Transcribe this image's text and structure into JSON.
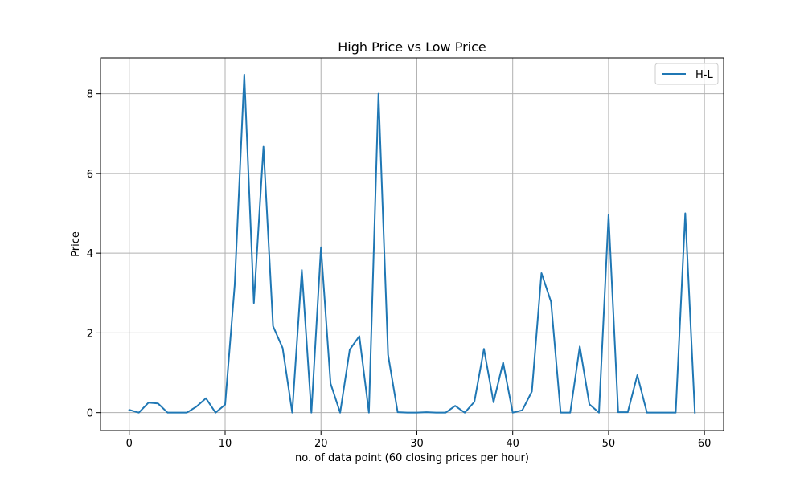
{
  "chart_data": {
    "type": "line",
    "title": "High Price vs Low Price",
    "xlabel": "no. of data point (60 closing prices per hour)",
    "ylabel": "Price",
    "xlim": [
      -3,
      62
    ],
    "ylim": [
      -0.45,
      8.9
    ],
    "x_ticks": [
      0,
      10,
      20,
      30,
      40,
      50,
      60
    ],
    "y_ticks": [
      0,
      2,
      4,
      6,
      8
    ],
    "grid": true,
    "legend_position": "top-right",
    "series": [
      {
        "name": "H-L",
        "color": "#1f77b4",
        "x": [
          0,
          1,
          2,
          3,
          4,
          5,
          6,
          7,
          8,
          9,
          10,
          11,
          12,
          13,
          14,
          15,
          16,
          17,
          18,
          19,
          20,
          21,
          22,
          23,
          24,
          25,
          26,
          27,
          28,
          29,
          30,
          31,
          32,
          33,
          34,
          35,
          36,
          37,
          38,
          39,
          40,
          41,
          42,
          43,
          44,
          45,
          46,
          47,
          48,
          49,
          50,
          51,
          52,
          53,
          54,
          55,
          56,
          57,
          58,
          59
        ],
        "values": [
          0.07,
          0.0,
          0.25,
          0.23,
          0.0,
          0.0,
          0.0,
          0.15,
          0.36,
          0.0,
          0.2,
          3.2,
          8.48,
          2.75,
          6.67,
          2.17,
          1.62,
          0.0,
          3.58,
          0.0,
          4.15,
          0.73,
          0.0,
          1.58,
          1.92,
          0.0,
          8.0,
          1.45,
          0.01,
          0.0,
          0.0,
          0.01,
          0.0,
          0.0,
          0.17,
          0.0,
          0.27,
          1.6,
          0.26,
          1.26,
          0.0,
          0.06,
          0.53,
          3.5,
          2.78,
          0.0,
          0.0,
          1.66,
          0.21,
          0.0,
          4.96,
          0.01,
          0.01,
          0.94,
          0.0,
          0.0,
          0.0,
          0.0,
          5.0,
          0.0
        ]
      }
    ]
  }
}
